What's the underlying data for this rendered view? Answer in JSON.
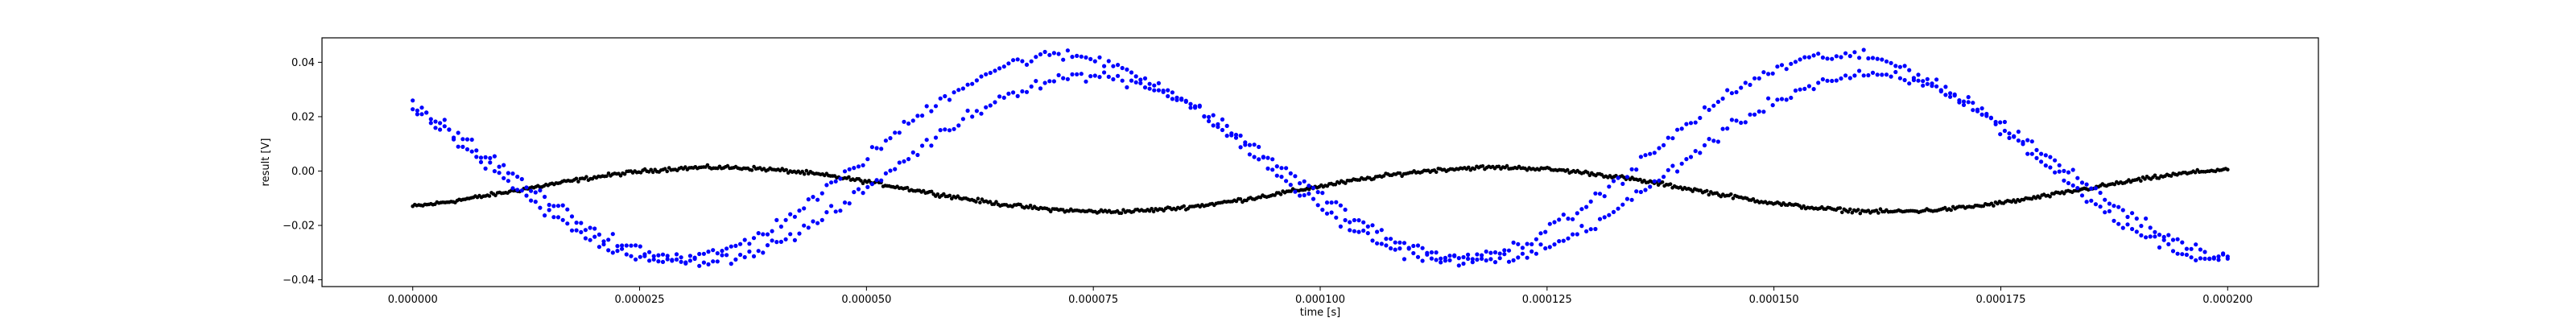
{
  "chart_data": {
    "type": "scatter",
    "xlabel": "time [s]",
    "ylabel": "result [V]",
    "xlim": [
      -1e-05,
      0.00021
    ],
    "ylim": [
      -0.0425,
      0.049
    ],
    "x_ticks": [
      0.0,
      2.5e-05,
      5e-05,
      7.5e-05,
      0.0001,
      0.000125,
      0.00015,
      0.000175,
      0.0002
    ],
    "x_tick_labels": [
      "0.000000",
      "0.000025",
      "0.000050",
      "0.000075",
      "0.000100",
      "0.000125",
      "0.000150",
      "0.000175",
      "0.000200"
    ],
    "y_ticks": [
      -0.04,
      -0.02,
      0.0,
      0.02,
      0.04
    ],
    "y_tick_labels": [
      "−0.04",
      "−0.02",
      "0.00",
      "0.02",
      "0.04"
    ],
    "grid": false,
    "series": [
      {
        "color": "#0000ff",
        "marker": "dot",
        "description": "two interleaved noisy sinusoids",
        "x_start": 0.0,
        "x_end": 0.0002,
        "points_per_branch": 400,
        "period": 8.6e-05,
        "branches": [
          {
            "amplitude": 0.0375,
            "phase_peak_x": 7.15e-05,
            "offset": 0.005,
            "noise": 0.0018
          },
          {
            "amplitude": 0.034,
            "phase_peak_x": 7.45e-05,
            "offset": 0.001,
            "noise": 0.0018
          }
        ],
        "approx_points": [
          [
            0.0,
            0.028
          ],
          [
            3e-05,
            -0.031
          ],
          [
            7.15e-05,
            0.042
          ],
          [
            0.000115,
            -0.031
          ],
          [
            0.000155,
            0.041
          ],
          [
            0.0002,
            -0.033
          ]
        ]
      },
      {
        "color": "#000000",
        "marker": "dot",
        "description": "small-amplitude sinusoid",
        "x_start": 0.0,
        "x_end": 0.0002,
        "points": 900,
        "period": 8.6e-05,
        "amplitude": 0.0081,
        "phase_peak_x": 3.35e-05,
        "offset": -0.0068,
        "noise": 0.0006,
        "approx_points": [
          [
            0.0,
            -0.014
          ],
          [
            3.35e-05,
            0.001
          ],
          [
            7.6e-05,
            -0.015
          ],
          [
            0.000119,
            0.001
          ],
          [
            0.000162,
            -0.015
          ],
          [
            0.0002,
            0.002
          ]
        ]
      }
    ]
  }
}
